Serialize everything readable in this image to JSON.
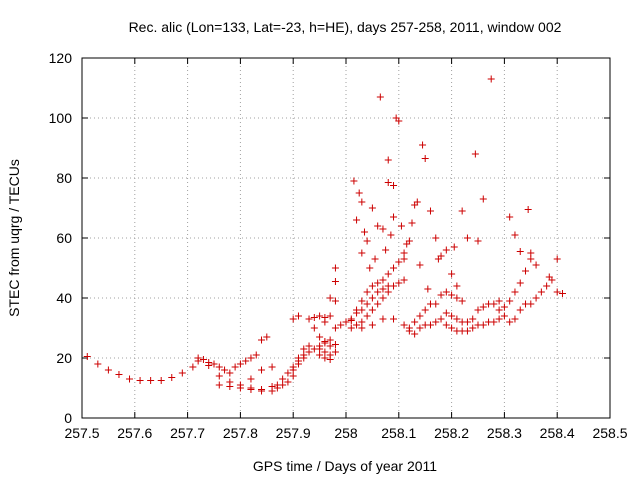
{
  "chart_data": {
    "type": "scatter",
    "title": "Rec. alic (Lon=133, Lat=-23, h=HE), days 257-258, 2011, window 002",
    "xlabel": "GPS time / Days of year 2011",
    "ylabel": "STEC from uqrg / TECUs",
    "xlim": [
      257.5,
      258.5
    ],
    "ylim": [
      0,
      120
    ],
    "xticks": [
      "257.5",
      "257.6",
      "257.7",
      "257.8",
      "257.9",
      "258",
      "258.1",
      "258.2",
      "258.3",
      "258.4",
      "258.5"
    ],
    "yticks": [
      "0",
      "20",
      "40",
      "60",
      "80",
      "100",
      "120"
    ],
    "grid": true,
    "marker": "+",
    "color": "#cc0000",
    "points": [
      [
        257.51,
        20.5
      ],
      [
        257.53,
        18
      ],
      [
        257.55,
        16
      ],
      [
        257.57,
        14.5
      ],
      [
        257.59,
        13
      ],
      [
        257.61,
        12.5
      ],
      [
        257.63,
        12.5
      ],
      [
        257.65,
        12.5
      ],
      [
        257.67,
        13.5
      ],
      [
        257.69,
        15
      ],
      [
        257.71,
        17
      ],
      [
        257.72,
        20
      ],
      [
        257.73,
        19.5
      ],
      [
        257.74,
        18.5
      ],
      [
        257.75,
        18
      ],
      [
        257.76,
        17
      ],
      [
        257.77,
        16
      ],
      [
        257.78,
        15
      ],
      [
        257.79,
        17
      ],
      [
        257.8,
        18
      ],
      [
        257.81,
        19
      ],
      [
        257.82,
        20
      ],
      [
        257.83,
        21
      ],
      [
        257.72,
        19
      ],
      [
        257.74,
        17.5
      ],
      [
        257.76,
        14
      ],
      [
        257.78,
        12
      ],
      [
        257.8,
        11
      ],
      [
        257.82,
        10
      ],
      [
        257.84,
        9.5
      ],
      [
        257.86,
        9
      ],
      [
        257.87,
        10
      ],
      [
        257.88,
        11
      ],
      [
        257.89,
        12
      ],
      [
        257.9,
        14
      ],
      [
        257.76,
        11
      ],
      [
        257.78,
        10.5
      ],
      [
        257.8,
        10
      ],
      [
        257.82,
        9.5
      ],
      [
        257.84,
        9
      ],
      [
        257.86,
        10.5
      ],
      [
        257.88,
        13
      ],
      [
        257.89,
        15
      ],
      [
        257.82,
        13
      ],
      [
        257.84,
        16
      ],
      [
        257.86,
        17
      ],
      [
        257.87,
        11
      ],
      [
        257.84,
        26
      ],
      [
        257.85,
        27
      ],
      [
        257.9,
        33
      ],
      [
        257.91,
        34
      ],
      [
        257.93,
        33
      ],
      [
        257.94,
        30
      ],
      [
        257.95,
        27
      ],
      [
        257.96,
        25
      ],
      [
        257.97,
        24
      ],
      [
        257.98,
        24.5
      ],
      [
        257.91,
        20
      ],
      [
        257.92,
        23
      ],
      [
        257.93,
        24
      ],
      [
        257.95,
        23
      ],
      [
        257.96,
        22
      ],
      [
        257.97,
        21
      ],
      [
        257.98,
        22
      ],
      [
        257.9,
        16
      ],
      [
        257.91,
        18
      ],
      [
        257.92,
        20
      ],
      [
        257.93,
        22
      ],
      [
        257.95,
        21
      ],
      [
        257.96,
        20
      ],
      [
        257.97,
        19.5
      ],
      [
        257.9,
        17
      ],
      [
        257.91,
        19
      ],
      [
        257.92,
        21
      ],
      [
        257.94,
        23
      ],
      [
        257.95,
        24
      ],
      [
        257.96,
        25.5
      ],
      [
        257.97,
        26
      ],
      [
        257.96,
        33.5
      ],
      [
        257.97,
        34
      ],
      [
        257.97,
        40
      ],
      [
        257.98,
        45.5
      ],
      [
        257.98,
        50
      ],
      [
        257.98,
        39
      ],
      [
        257.94,
        33.5
      ],
      [
        257.95,
        34
      ],
      [
        257.96,
        32
      ],
      [
        257.98,
        30
      ],
      [
        257.99,
        31
      ],
      [
        258.0,
        32
      ],
      [
        258.01,
        33
      ],
      [
        258.02,
        36
      ],
      [
        258.03,
        39
      ],
      [
        258.04,
        42
      ],
      [
        258.05,
        44
      ],
      [
        258.06,
        45
      ],
      [
        258.07,
        46
      ],
      [
        258.08,
        48
      ],
      [
        258.09,
        50
      ],
      [
        258.1,
        52
      ],
      [
        258.11,
        53
      ],
      [
        258.01,
        30
      ],
      [
        258.02,
        31
      ],
      [
        258.03,
        32
      ],
      [
        258.04,
        34
      ],
      [
        258.05,
        36
      ],
      [
        258.06,
        38
      ],
      [
        258.07,
        40
      ],
      [
        258.08,
        42
      ],
      [
        258.09,
        44
      ],
      [
        258.1,
        45
      ],
      [
        258.11,
        46
      ],
      [
        258.02,
        35
      ],
      [
        258.03,
        36
      ],
      [
        258.04,
        38
      ],
      [
        258.05,
        40
      ],
      [
        258.06,
        42
      ],
      [
        258.07,
        43
      ],
      [
        258.08,
        44
      ],
      [
        258.01,
        32.5
      ],
      [
        258.03,
        30
      ],
      [
        258.05,
        31
      ],
      [
        258.07,
        33
      ],
      [
        258.09,
        33
      ],
      [
        258.11,
        31
      ],
      [
        258.12,
        29
      ],
      [
        258.13,
        28
      ],
      [
        258.14,
        30
      ],
      [
        258.15,
        31
      ],
      [
        258.16,
        31
      ],
      [
        258.17,
        32
      ],
      [
        258.12,
        30
      ],
      [
        258.13,
        32
      ],
      [
        258.14,
        34
      ],
      [
        258.15,
        36
      ],
      [
        258.16,
        38
      ],
      [
        258.17,
        38
      ],
      [
        258.18,
        41
      ],
      [
        258.19,
        42
      ],
      [
        258.2,
        41
      ],
      [
        258.21,
        40
      ],
      [
        258.22,
        39
      ],
      [
        258.18,
        33
      ],
      [
        258.19,
        31
      ],
      [
        258.2,
        30
      ],
      [
        258.21,
        29
      ],
      [
        258.22,
        29
      ],
      [
        258.23,
        29
      ],
      [
        258.24,
        30
      ],
      [
        258.25,
        31
      ],
      [
        258.26,
        31
      ],
      [
        258.27,
        32
      ],
      [
        258.28,
        32
      ],
      [
        258.29,
        33
      ],
      [
        258.19,
        35
      ],
      [
        258.2,
        34
      ],
      [
        258.21,
        33
      ],
      [
        258.22,
        32
      ],
      [
        258.23,
        32
      ],
      [
        258.24,
        33
      ],
      [
        258.25,
        36
      ],
      [
        258.26,
        37
      ],
      [
        258.27,
        38
      ],
      [
        258.28,
        38
      ],
      [
        258.29,
        36
      ],
      [
        258.3,
        34
      ],
      [
        258.31,
        32
      ],
      [
        258.32,
        33
      ],
      [
        258.33,
        36
      ],
      [
        258.34,
        38
      ],
      [
        258.35,
        38
      ],
      [
        258.36,
        40
      ],
      [
        258.37,
        42
      ],
      [
        258.38,
        44
      ],
      [
        258.39,
        46
      ],
      [
        258.4,
        42
      ],
      [
        258.41,
        41.5
      ],
      [
        258.3,
        37
      ],
      [
        258.31,
        39
      ],
      [
        258.32,
        42
      ],
      [
        258.33,
        45
      ],
      [
        258.34,
        49
      ],
      [
        258.35,
        53
      ],
      [
        258.4,
        53
      ],
      [
        258.015,
        79
      ],
      [
        258.02,
        66
      ],
      [
        258.025,
        75
      ],
      [
        258.03,
        72
      ],
      [
        258.03,
        55
      ],
      [
        258.035,
        62
      ],
      [
        258.04,
        59
      ],
      [
        258.045,
        50
      ],
      [
        258.05,
        70
      ],
      [
        258.055,
        53
      ],
      [
        258.06,
        64
      ],
      [
        258.065,
        107
      ],
      [
        258.07,
        63
      ],
      [
        258.075,
        56
      ],
      [
        258.08,
        86
      ],
      [
        258.08,
        78.5
      ],
      [
        258.085,
        61
      ],
      [
        258.09,
        67
      ],
      [
        258.09,
        77.5
      ],
      [
        258.095,
        100
      ],
      [
        258.1,
        99
      ],
      [
        258.105,
        64
      ],
      [
        258.11,
        55
      ],
      [
        258.115,
        58
      ],
      [
        258.12,
        59
      ],
      [
        258.125,
        65
      ],
      [
        258.13,
        71
      ],
      [
        258.135,
        72
      ],
      [
        258.14,
        51
      ],
      [
        258.145,
        91
      ],
      [
        258.15,
        86.5
      ],
      [
        258.155,
        43
      ],
      [
        258.16,
        69
      ],
      [
        258.17,
        60
      ],
      [
        258.175,
        53
      ],
      [
        258.18,
        54
      ],
      [
        258.19,
        56
      ],
      [
        258.2,
        48
      ],
      [
        258.205,
        57
      ],
      [
        258.21,
        44
      ],
      [
        258.22,
        69
      ],
      [
        258.23,
        60
      ],
      [
        258.245,
        88
      ],
      [
        258.25,
        59
      ],
      [
        258.26,
        73
      ],
      [
        258.275,
        113
      ],
      [
        258.29,
        39
      ],
      [
        258.31,
        67
      ],
      [
        258.32,
        61
      ],
      [
        258.33,
        55.5
      ],
      [
        258.345,
        69.5
      ],
      [
        258.35,
        55
      ],
      [
        258.36,
        51
      ],
      [
        258.385,
        47
      ]
    ]
  }
}
